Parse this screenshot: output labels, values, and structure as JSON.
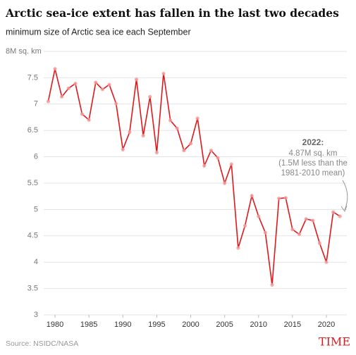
{
  "chart_data": {
    "type": "line",
    "title": "Arctic sea-ice extent has fallen in the last two decades",
    "subtitle": "minimum size of Arctic sea ice each September",
    "x": [
      1979,
      1980,
      1981,
      1982,
      1983,
      1984,
      1985,
      1986,
      1987,
      1988,
      1989,
      1990,
      1991,
      1992,
      1993,
      1994,
      1995,
      1996,
      1997,
      1998,
      1999,
      2000,
      2001,
      2002,
      2003,
      2004,
      2005,
      2006,
      2007,
      2008,
      2009,
      2010,
      2011,
      2012,
      2013,
      2014,
      2015,
      2016,
      2017,
      2018,
      2019,
      2020,
      2021,
      2022
    ],
    "series": [
      {
        "color": "#e0181b",
        "values": [
          7.05,
          7.67,
          7.14,
          7.3,
          7.39,
          6.81,
          6.7,
          7.41,
          7.28,
          7.37,
          7.01,
          6.14,
          6.47,
          7.47,
          6.4,
          7.14,
          6.08,
          7.58,
          6.69,
          6.54,
          6.12,
          6.25,
          6.73,
          5.83,
          6.12,
          5.98,
          5.5,
          5.86,
          4.27,
          4.69,
          5.26,
          4.87,
          4.56,
          3.57,
          5.21,
          5.22,
          4.62,
          4.53,
          4.82,
          4.79,
          4.36,
          4.0,
          4.95,
          4.87
        ]
      }
    ],
    "xlim": [
      1978.5,
      2023
    ],
    "xticks": [
      1980,
      1985,
      1990,
      1995,
      2000,
      2005,
      2010,
      2015,
      2020
    ],
    "ylim": [
      3,
      8
    ],
    "yticks": [
      3,
      3.5,
      4,
      4.5,
      5,
      5.5,
      6,
      6.5,
      7,
      7.5,
      {
        "value": 8,
        "label": "8M sq. km"
      }
    ],
    "grid": true,
    "annotation": {
      "heading": "2022:",
      "lines": [
        "4.87M sq. km",
        "(1.5M less than the",
        "1981-2010 mean)"
      ]
    },
    "source": "Source: NSIDC/NASA",
    "logo": "TIME"
  }
}
